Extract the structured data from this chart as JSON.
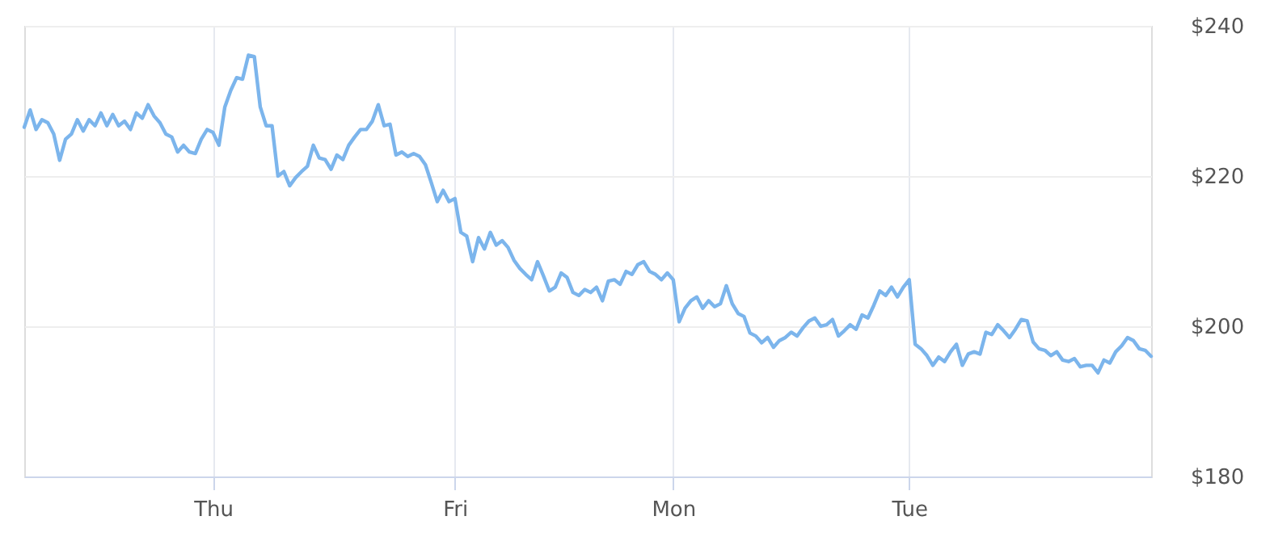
{
  "chart_data": {
    "type": "line",
    "categories": [
      null,
      null,
      null,
      null,
      null,
      null,
      null,
      null,
      null,
      null,
      null,
      null,
      null,
      null,
      null,
      null,
      null,
      null,
      null,
      null,
      null,
      null,
      null,
      null,
      null,
      null,
      null,
      null,
      null,
      null,
      null,
      null,
      "Thu",
      null,
      null,
      null,
      null,
      null,
      null,
      null,
      null,
      null,
      null,
      null,
      null,
      null,
      null,
      null,
      null,
      null,
      null,
      null,
      null,
      null,
      null,
      null,
      null,
      null,
      null,
      null,
      null,
      null,
      null,
      null,
      null,
      null,
      null,
      null,
      null,
      null,
      null,
      null,
      null,
      "Fri",
      null,
      null,
      null,
      null,
      null,
      null,
      null,
      null,
      null,
      null,
      null,
      null,
      null,
      null,
      null,
      null,
      null,
      null,
      null,
      null,
      null,
      null,
      null,
      null,
      null,
      null,
      null,
      null,
      null,
      null,
      null,
      null,
      null,
      null,
      null,
      null,
      "Mon",
      null,
      null,
      null,
      null,
      null,
      null,
      null,
      null,
      null,
      null,
      null,
      null,
      null,
      null,
      null,
      null,
      null,
      null,
      null,
      null,
      null,
      null,
      null,
      null,
      null,
      null,
      null,
      null,
      null,
      null,
      null,
      null,
      null,
      null,
      null,
      null,
      null,
      null,
      null,
      "Tue",
      null,
      null,
      null,
      null,
      null,
      null,
      null,
      null,
      null,
      null,
      null,
      null,
      null,
      null,
      null,
      null,
      null,
      null,
      null,
      null,
      null,
      null,
      null,
      null,
      null,
      null,
      null,
      null,
      null,
      null,
      null,
      null,
      null,
      null,
      null,
      null,
      null,
      null,
      null,
      null,
      null
    ],
    "series": [
      {
        "color": "#7cb5ec",
        "values": [
          226.5,
          228.8,
          226.2,
          227.5,
          227.1,
          225.6,
          222.1,
          224.9,
          225.6,
          227.5,
          226.0,
          227.5,
          226.7,
          228.4,
          226.7,
          228.2,
          226.7,
          227.3,
          226.2,
          228.4,
          227.7,
          229.5,
          228.0,
          227.1,
          225.6,
          225.2,
          223.2,
          224.1,
          223.2,
          223.0,
          224.9,
          226.2,
          225.8,
          224.1,
          229.2,
          231.4,
          233.1,
          232.9,
          236.1,
          235.9,
          229.2,
          226.7,
          226.7,
          220.0,
          220.6,
          218.7,
          219.8,
          220.6,
          221.3,
          224.1,
          222.4,
          222.2,
          220.9,
          222.8,
          222.2,
          224.1,
          225.2,
          226.2,
          226.2,
          227.3,
          229.5,
          226.7,
          226.9,
          222.8,
          223.2,
          222.6,
          223.0,
          222.6,
          221.5,
          219.1,
          216.6,
          218.1,
          216.6,
          217.0,
          212.5,
          212.0,
          208.6,
          211.8,
          210.3,
          212.5,
          210.8,
          211.4,
          210.5,
          208.8,
          207.7,
          206.9,
          206.2,
          208.6,
          206.7,
          204.7,
          205.2,
          207.1,
          206.5,
          204.5,
          204.1,
          204.9,
          204.5,
          205.2,
          203.4,
          206.0,
          206.2,
          205.6,
          207.3,
          206.9,
          208.2,
          208.6,
          207.3,
          206.9,
          206.2,
          207.1,
          206.2,
          200.6,
          202.4,
          203.4,
          203.9,
          202.4,
          203.4,
          202.6,
          203.0,
          205.4,
          203.0,
          201.7,
          201.3,
          199.1,
          198.7,
          197.8,
          198.5,
          197.2,
          198.1,
          198.5,
          199.2,
          198.7,
          199.8,
          200.7,
          201.1,
          200.0,
          200.2,
          200.9,
          198.7,
          199.4,
          200.2,
          199.6,
          201.5,
          201.1,
          202.8,
          204.7,
          204.1,
          205.2,
          203.9,
          205.2,
          206.2,
          197.6,
          197.0,
          196.1,
          194.8,
          195.9,
          195.3,
          196.6,
          197.6,
          194.8,
          196.3,
          196.6,
          196.3,
          199.2,
          198.9,
          200.2,
          199.4,
          198.5,
          199.6,
          200.9,
          200.7,
          197.9,
          197.0,
          196.8,
          196.1,
          196.6,
          195.5,
          195.3,
          195.7,
          194.6,
          194.8,
          194.8,
          193.8,
          195.5,
          195.1,
          196.6,
          197.4,
          198.5,
          198.1,
          197.0,
          196.8,
          196.0
        ]
      }
    ],
    "ylim": [
      180,
      240
    ],
    "yticks": [
      {
        "value": 180,
        "label": "$180"
      },
      {
        "value": 200,
        "label": "$200"
      },
      {
        "value": 220,
        "label": "$220"
      },
      {
        "value": 240,
        "label": "$240"
      }
    ],
    "grid": true,
    "marker": "none",
    "line_style": "solid"
  }
}
